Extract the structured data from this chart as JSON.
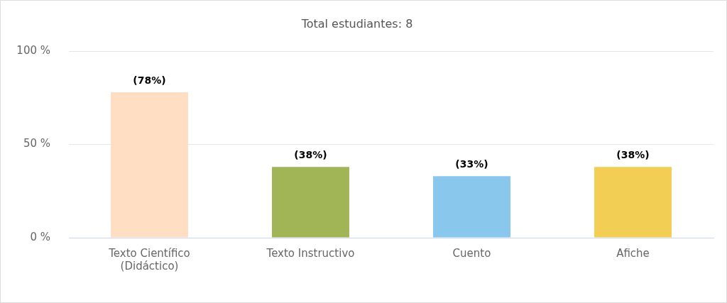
{
  "chart_data": {
    "type": "bar",
    "title": "Total estudiantes: 8",
    "categories": [
      "Texto Científico (Didáctico)",
      "Texto Instructivo",
      "Cuento",
      "Afiche"
    ],
    "values": [
      78,
      38,
      33,
      38
    ],
    "colors": [
      "#ffdec3",
      "#a1b556",
      "#89c8ec",
      "#f2cf54"
    ],
    "value_labels": [
      "(78%)",
      "(38%)",
      "(33%)",
      "(38%)"
    ],
    "ylim": [
      0,
      100
    ],
    "yticks": [
      {
        "value": 0,
        "label": "0 %"
      },
      {
        "value": 50,
        "label": "50 %"
      },
      {
        "value": 100,
        "label": "100 %"
      }
    ],
    "grid": "y"
  }
}
